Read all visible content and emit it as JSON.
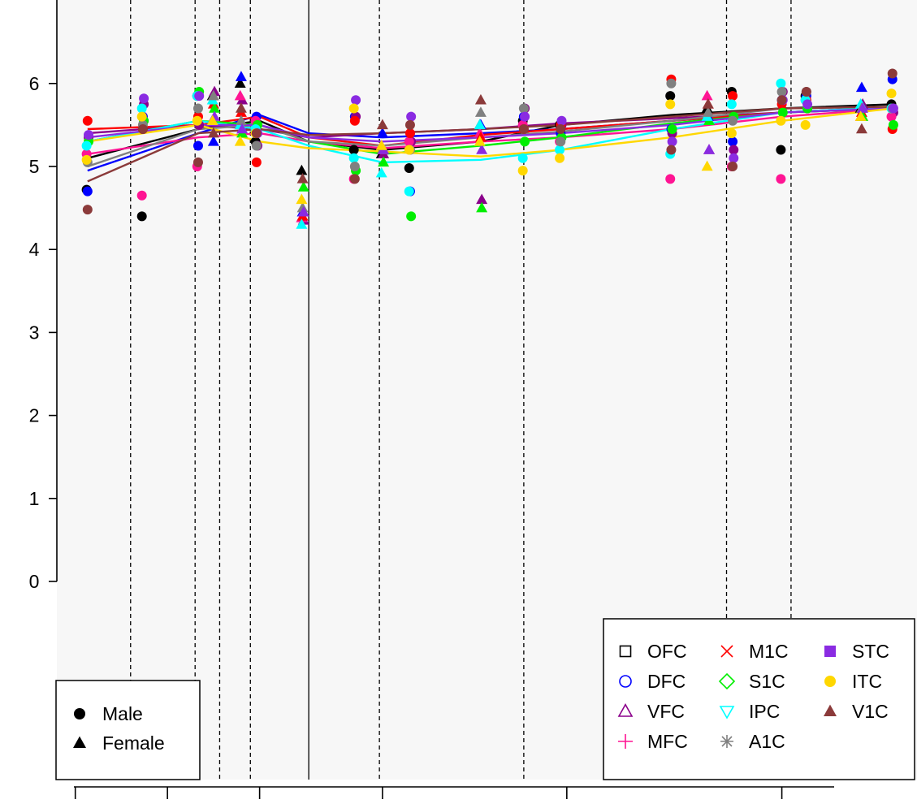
{
  "chart_data": {
    "type": "scatter",
    "title": "",
    "xlabel": "",
    "ylabel": "",
    "ylim": [
      -1.2,
      6.8
    ],
    "xlim": [
      0,
      14
    ],
    "y_ticks": [
      "0",
      "1",
      "2",
      "3",
      "4",
      "5",
      "6"
    ],
    "x_ticks": [
      0.3,
      1.8,
      3.3,
      5.3,
      8.3,
      11.8
    ],
    "background": "#f7f7f7",
    "vline_solid": [
      4.1
    ],
    "vlines_dashed": [
      1.2,
      2.25,
      2.65,
      3.15,
      5.25,
      7.6,
      10.9,
      11.95
    ],
    "marker_legend": {
      "position": "bottom-left",
      "entries": [
        {
          "label": "Male",
          "shape": "circle"
        },
        {
          "label": "Female",
          "shape": "triangle"
        }
      ]
    },
    "series_legend": {
      "position": "bottom-right",
      "entries": [
        {
          "name": "OFC",
          "color": "#000000",
          "symbol": "open-square"
        },
        {
          "name": "DFC",
          "color": "#0000ff",
          "symbol": "open-circle"
        },
        {
          "name": "VFC",
          "color": "#8b008b",
          "symbol": "open-triangle"
        },
        {
          "name": "MFC",
          "color": "#ff1493",
          "symbol": "plus"
        },
        {
          "name": "M1C",
          "color": "#ff0000",
          "symbol": "cross"
        },
        {
          "name": "S1C",
          "color": "#00ee00",
          "symbol": "open-diamond"
        },
        {
          "name": "IPC",
          "color": "#00ffff",
          "symbol": "open-down-triangle"
        },
        {
          "name": "A1C",
          "color": "#808080",
          "symbol": "asterisk"
        },
        {
          "name": "STC",
          "color": "#8a2be2",
          "symbol": "filled-square"
        },
        {
          "name": "ITC",
          "color": "#ffd700",
          "symbol": "filled-circle"
        },
        {
          "name": "V1C",
          "color": "#8b3a3a",
          "symbol": "filled-triangle"
        }
      ]
    },
    "ages": [
      0.5,
      1.4,
      2.3,
      2.55,
      3.0,
      3.25,
      4.0,
      4.85,
      5.3,
      5.75,
      6.9,
      7.6,
      8.2,
      10.0,
      10.6,
      11.0,
      11.8,
      12.2,
      13.1,
      13.6
    ],
    "sex": [
      "M",
      "M",
      "M",
      "F",
      "F",
      "M",
      "F",
      "M",
      "F",
      "M",
      "F",
      "M",
      "M",
      "M",
      "F",
      "M",
      "M",
      "M",
      "F",
      "M"
    ],
    "series": [
      {
        "name": "OFC",
        "color": "#000000",
        "values": [
          4.72,
          4.4,
          5.85,
          5.85,
          6.0,
          5.3,
          4.95,
          5.2,
          5.15,
          4.98,
          5.5,
          5.55,
          5.5,
          5.85,
          5.7,
          5.9,
          5.2,
          5.85,
          5.7,
          5.75
        ],
        "fit_x": [
          0.5,
          2.3,
          3.3,
          4.1,
          5.3,
          6.9,
          8.2,
          10.0,
          11.8,
          13.6
        ],
        "fit_y": [
          5.1,
          5.45,
          5.55,
          5.3,
          5.2,
          5.3,
          5.5,
          5.62,
          5.7,
          5.75
        ]
      },
      {
        "name": "DFC",
        "color": "#0000ff",
        "values": [
          4.7,
          5.6,
          5.25,
          5.3,
          6.08,
          5.6,
          4.45,
          5.6,
          5.4,
          4.7,
          5.5,
          5.6,
          5.4,
          5.45,
          5.6,
          5.3,
          5.8,
          5.85,
          5.95,
          6.05
        ],
        "fit_x": [
          0.5,
          2.3,
          3.3,
          4.1,
          5.3,
          6.9,
          8.2,
          10.0,
          11.8,
          13.6
        ],
        "fit_y": [
          4.95,
          5.4,
          5.62,
          5.4,
          5.35,
          5.4,
          5.45,
          5.55,
          5.65,
          5.7
        ]
      },
      {
        "name": "VFC",
        "color": "#8b008b",
        "values": [
          5.35,
          5.75,
          5.5,
          5.9,
          5.8,
          5.25,
          4.35,
          5.6,
          5.15,
          5.3,
          4.6,
          5.7,
          5.5,
          5.4,
          5.2,
          5.2,
          5.9,
          5.7,
          5.75,
          5.65
        ],
        "fit_x": [
          0.5,
          2.3,
          3.3,
          4.1,
          5.3,
          6.9,
          8.2,
          10.0,
          11.8,
          13.6
        ],
        "fit_y": [
          5.4,
          5.5,
          5.45,
          5.35,
          5.4,
          5.45,
          5.52,
          5.58,
          5.65,
          5.72
        ]
      },
      {
        "name": "MFC",
        "color": "#ff1493",
        "values": [
          5.15,
          4.65,
          5.0,
          5.55,
          5.85,
          5.55,
          4.38,
          4.85,
          5.25,
          5.3,
          5.4,
          5.5,
          5.3,
          4.85,
          5.85,
          5.0,
          4.85,
          5.8,
          5.6,
          5.6
        ],
        "fit_x": [
          0.5,
          2.3,
          3.3,
          4.1,
          5.3,
          6.9,
          8.2,
          10.0,
          11.8,
          13.6
        ],
        "fit_y": [
          5.15,
          5.35,
          5.4,
          5.3,
          5.22,
          5.3,
          5.35,
          5.45,
          5.6,
          5.7
        ]
      },
      {
        "name": "M1C",
        "color": "#ff0000",
        "values": [
          5.55,
          5.45,
          5.6,
          5.75,
          5.65,
          5.05,
          4.4,
          5.55,
          5.2,
          5.4,
          5.35,
          5.45,
          5.5,
          6.05,
          5.75,
          5.85,
          5.75,
          5.8,
          5.65,
          5.45
        ],
        "fit_x": [
          0.5,
          2.3,
          3.3,
          4.1,
          5.3,
          6.9,
          8.2,
          10.0,
          11.8,
          13.6
        ],
        "fit_y": [
          5.45,
          5.5,
          5.6,
          5.35,
          5.25,
          5.38,
          5.45,
          5.55,
          5.65,
          5.72
        ]
      },
      {
        "name": "S1C",
        "color": "#00ee00",
        "values": [
          5.3,
          5.55,
          5.9,
          5.7,
          5.4,
          5.5,
          4.75,
          4.95,
          5.05,
          4.4,
          4.5,
          5.3,
          5.35,
          5.45,
          5.55,
          5.6,
          5.65,
          5.7,
          5.6,
          5.5
        ],
        "fit_x": [
          0.5,
          2.3,
          3.3,
          4.1,
          5.3,
          6.9,
          8.2,
          10.0,
          11.8,
          13.6
        ],
        "fit_y": [
          5.3,
          5.55,
          5.5,
          5.3,
          5.15,
          5.25,
          5.35,
          5.52,
          5.65,
          5.7
        ]
      },
      {
        "name": "IPC",
        "color": "#00ffff",
        "values": [
          5.25,
          5.7,
          5.85,
          5.8,
          5.5,
          5.45,
          4.3,
          5.1,
          4.92,
          4.7,
          5.5,
          5.1,
          5.2,
          5.15,
          5.6,
          5.75,
          6.0,
          5.8,
          5.75,
          5.7
        ],
        "fit_x": [
          0.5,
          2.3,
          3.3,
          4.1,
          5.3,
          6.9,
          8.2,
          10.0,
          11.8,
          13.6
        ],
        "fit_y": [
          5.3,
          5.55,
          5.45,
          5.25,
          5.05,
          5.08,
          5.2,
          5.45,
          5.65,
          5.72
        ]
      },
      {
        "name": "A1C",
        "color": "#808080",
        "values": [
          5.05,
          5.5,
          5.7,
          5.85,
          5.55,
          5.25,
          4.5,
          5.0,
          5.2,
          5.2,
          5.65,
          5.7,
          5.3,
          6.0,
          5.65,
          5.55,
          5.9,
          5.9,
          5.7,
          5.7
        ],
        "fit_x": [
          0.5,
          2.3,
          3.3,
          4.1,
          5.3,
          6.9,
          8.2,
          10.0,
          11.8,
          13.6
        ],
        "fit_y": [
          5.0,
          5.45,
          5.5,
          5.3,
          5.25,
          5.35,
          5.42,
          5.55,
          5.7,
          5.72
        ]
      },
      {
        "name": "STC",
        "color": "#8a2be2",
        "values": [
          5.38,
          5.82,
          5.85,
          5.6,
          5.45,
          5.4,
          4.45,
          5.8,
          5.2,
          5.6,
          5.2,
          5.6,
          5.55,
          5.3,
          5.2,
          5.1,
          5.8,
          5.75,
          5.7,
          5.7
        ],
        "fit_x": [
          0.5,
          2.3,
          3.3,
          4.1,
          5.3,
          6.9,
          8.2,
          10.0,
          11.8,
          13.6
        ],
        "fit_y": [
          5.35,
          5.5,
          5.5,
          5.35,
          5.3,
          5.35,
          5.4,
          5.5,
          5.65,
          5.7
        ]
      },
      {
        "name": "ITC",
        "color": "#ffd700",
        "values": [
          5.08,
          5.6,
          5.55,
          5.55,
          5.3,
          5.4,
          4.6,
          5.7,
          5.25,
          5.2,
          5.3,
          4.95,
          5.1,
          5.75,
          5.0,
          5.4,
          5.55,
          5.5,
          5.6,
          5.88
        ],
        "fit_x": [
          0.5,
          2.3,
          3.3,
          4.1,
          5.3,
          6.9,
          8.2,
          10.0,
          11.8,
          13.6
        ],
        "fit_y": [
          5.3,
          5.5,
          5.3,
          5.22,
          5.18,
          5.12,
          5.2,
          5.35,
          5.55,
          5.7
        ]
      },
      {
        "name": "V1C",
        "color": "#8b3a3a",
        "values": [
          4.48,
          5.45,
          5.05,
          5.4,
          5.7,
          5.4,
          4.85,
          4.85,
          5.5,
          5.5,
          5.8,
          5.45,
          5.45,
          5.2,
          5.75,
          5.0,
          5.8,
          5.9,
          5.45,
          6.12
        ],
        "fit_x": [
          0.5,
          2.3,
          3.3,
          4.1,
          5.3,
          6.9,
          8.2,
          10.0,
          11.8,
          13.6
        ],
        "fit_y": [
          4.82,
          5.4,
          5.45,
          5.38,
          5.4,
          5.45,
          5.5,
          5.6,
          5.7,
          5.72
        ]
      }
    ]
  }
}
